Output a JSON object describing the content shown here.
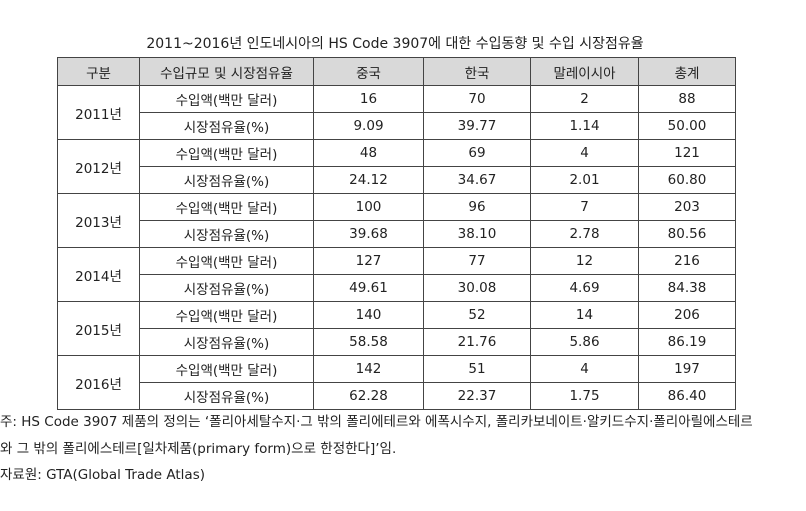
{
  "title": "2011~2016년 인도네시아의 HS Code 3907에 대한 수입동향 및 수입 시장점유율",
  "table": {
    "header": [
      "구분",
      "수입규모 및 시장점유율",
      "중국",
      "한국",
      "말레이시아",
      "총계"
    ],
    "groups": [
      {
        "year": "2011년",
        "rows": [
          {
            "label": "수입액(백만 달러)",
            "cells": [
              "16",
              "70",
              "2",
              "88"
            ]
          },
          {
            "label": "시장점유율(%)",
            "cells": [
              "9.09",
              "39.77",
              "1.14",
              "50.00"
            ]
          }
        ]
      },
      {
        "year": "2012년",
        "rows": [
          {
            "label": "수입액(백만 달러)",
            "cells": [
              "48",
              "69",
              "4",
              "121"
            ]
          },
          {
            "label": "시장점유율(%)",
            "cells": [
              "24.12",
              "34.67",
              "2.01",
              "60.80"
            ]
          }
        ]
      },
      {
        "year": "2013년",
        "rows": [
          {
            "label": "수입액(백만 달러)",
            "cells": [
              "100",
              "96",
              "7",
              "203"
            ]
          },
          {
            "label": "시장점유율(%)",
            "cells": [
              "39.68",
              "38.10",
              "2.78",
              "80.56"
            ]
          }
        ]
      },
      {
        "year": "2014년",
        "rows": [
          {
            "label": "수입액(백만 달러)",
            "cells": [
              "127",
              "77",
              "12",
              "216"
            ]
          },
          {
            "label": "시장점유율(%)",
            "cells": [
              "49.61",
              "30.08",
              "4.69",
              "84.38"
            ]
          }
        ]
      },
      {
        "year": "2015년",
        "rows": [
          {
            "label": "수입액(백만 달러)",
            "cells": [
              "140",
              "52",
              "14",
              "206"
            ]
          },
          {
            "label": "시장점유율(%)",
            "cells": [
              "58.58",
              "21.76",
              "5.86",
              "86.19"
            ]
          }
        ]
      },
      {
        "year": "2016년",
        "rows": [
          {
            "label": "수입액(백만 달러)",
            "cells": [
              "142",
              "51",
              "4",
              "197"
            ]
          },
          {
            "label": "시장점유율(%)",
            "cells": [
              "62.28",
              "22.37",
              "1.75",
              "86.40"
            ]
          }
        ]
      }
    ]
  },
  "notes": [
    "주: HS Code 3907 제품의 정의는 ‘폴리아세탈수지·그 밖의 폴리에테르와 에폭시수지, 폴리카보네이트·알키드수지·폴리아릴에스테르",
    "와 그 밖의 폴리에스테르[일차제품(primary form)으로 한정한다]’임.",
    "자료원: GTA(Global Trade Atlas)"
  ]
}
